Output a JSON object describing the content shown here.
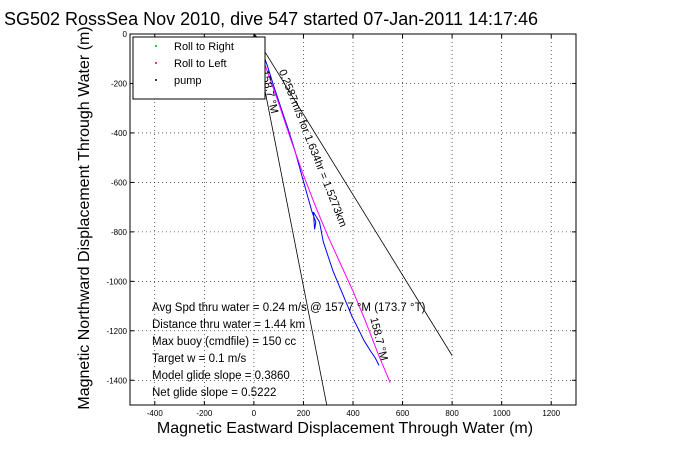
{
  "chart_data": {
    "type": "line",
    "title": "SG502 RossSea Nov 2010, dive 547 started 07-Jan-2011 14:17:46",
    "xlabel": "Magnetic Eastward Displacement Through Water (m)",
    "ylabel": "Magnetic Northward Displacement Through Water (m)",
    "xlim": [
      -500,
      1300
    ],
    "ylim": [
      -1500,
      0
    ],
    "xticks": [
      "-400",
      "-200",
      "0",
      "200",
      "400",
      "600",
      "800",
      "1000",
      "1200"
    ],
    "yticks": [
      "0",
      "-200",
      "-400",
      "-600",
      "-800",
      "-1000",
      "-1200",
      "-1400"
    ],
    "grid": true,
    "legend": {
      "placement": "top-left",
      "entries": [
        {
          "label": "Roll to Right",
          "color": "#00aa00"
        },
        {
          "label": "Roll to Left",
          "color": "#ff0000"
        },
        {
          "label": "pump",
          "color": "#000000"
        }
      ]
    },
    "series": [
      {
        "color": "#0000ff",
        "x": [
          0,
          10,
          30,
          55,
          80,
          110,
          140,
          165,
          190,
          215,
          235,
          250,
          245,
          240,
          265,
          280,
          300,
          320,
          345,
          370,
          395,
          420,
          445,
          470,
          490,
          505
        ],
        "y": [
          0,
          -10,
          -60,
          -130,
          -210,
          -300,
          -390,
          -470,
          -560,
          -650,
          -720,
          -760,
          -790,
          -720,
          -760,
          -840,
          -900,
          -960,
          -1020,
          -1080,
          -1140,
          -1190,
          -1240,
          -1280,
          -1310,
          -1340
        ]
      },
      {
        "color": "#ff00ff",
        "x": [
          0,
          50,
          100,
          150,
          200,
          250,
          300,
          350,
          400,
          450,
          500,
          550
        ],
        "y": [
          0,
          -140,
          -280,
          -430,
          -570,
          -700,
          -820,
          -930,
          -1040,
          -1160,
          -1290,
          -1410
        ]
      },
      {
        "color": "#000000",
        "x": [
          0,
          800
        ],
        "y": [
          0,
          -1300
        ]
      },
      {
        "color": "#000000",
        "x": [
          0,
          300
        ],
        "y": [
          0,
          -1530
        ]
      }
    ],
    "line_labels": [
      {
        "text": "0.2587m/s for 1.634hr = 1.5273km",
        "x": 100,
        "y": -150,
        "end_x": 475,
        "end_y": -1100,
        "color": "#000000"
      },
      {
        "text": "158.7 °M",
        "x": 30,
        "y": -150,
        "end_x": 65,
        "end_y": -300,
        "color": "#000000"
      },
      {
        "text": "158.7 °M",
        "x": 470,
        "y": -1150,
        "end_x": 505,
        "end_y": -1290,
        "color": "#000000"
      }
    ],
    "annotations": [
      "Avg Spd thru water = 0.24 m/s @ 157.7 °M (173.7 °T)",
      "Distance thru water = 1.44 km",
      "Max buoy (cmdfile) = 150 cc",
      "Target w = 0.1 m/s",
      "Model glide slope = 0.3860",
      "Net glide slope = 0.5222"
    ]
  }
}
